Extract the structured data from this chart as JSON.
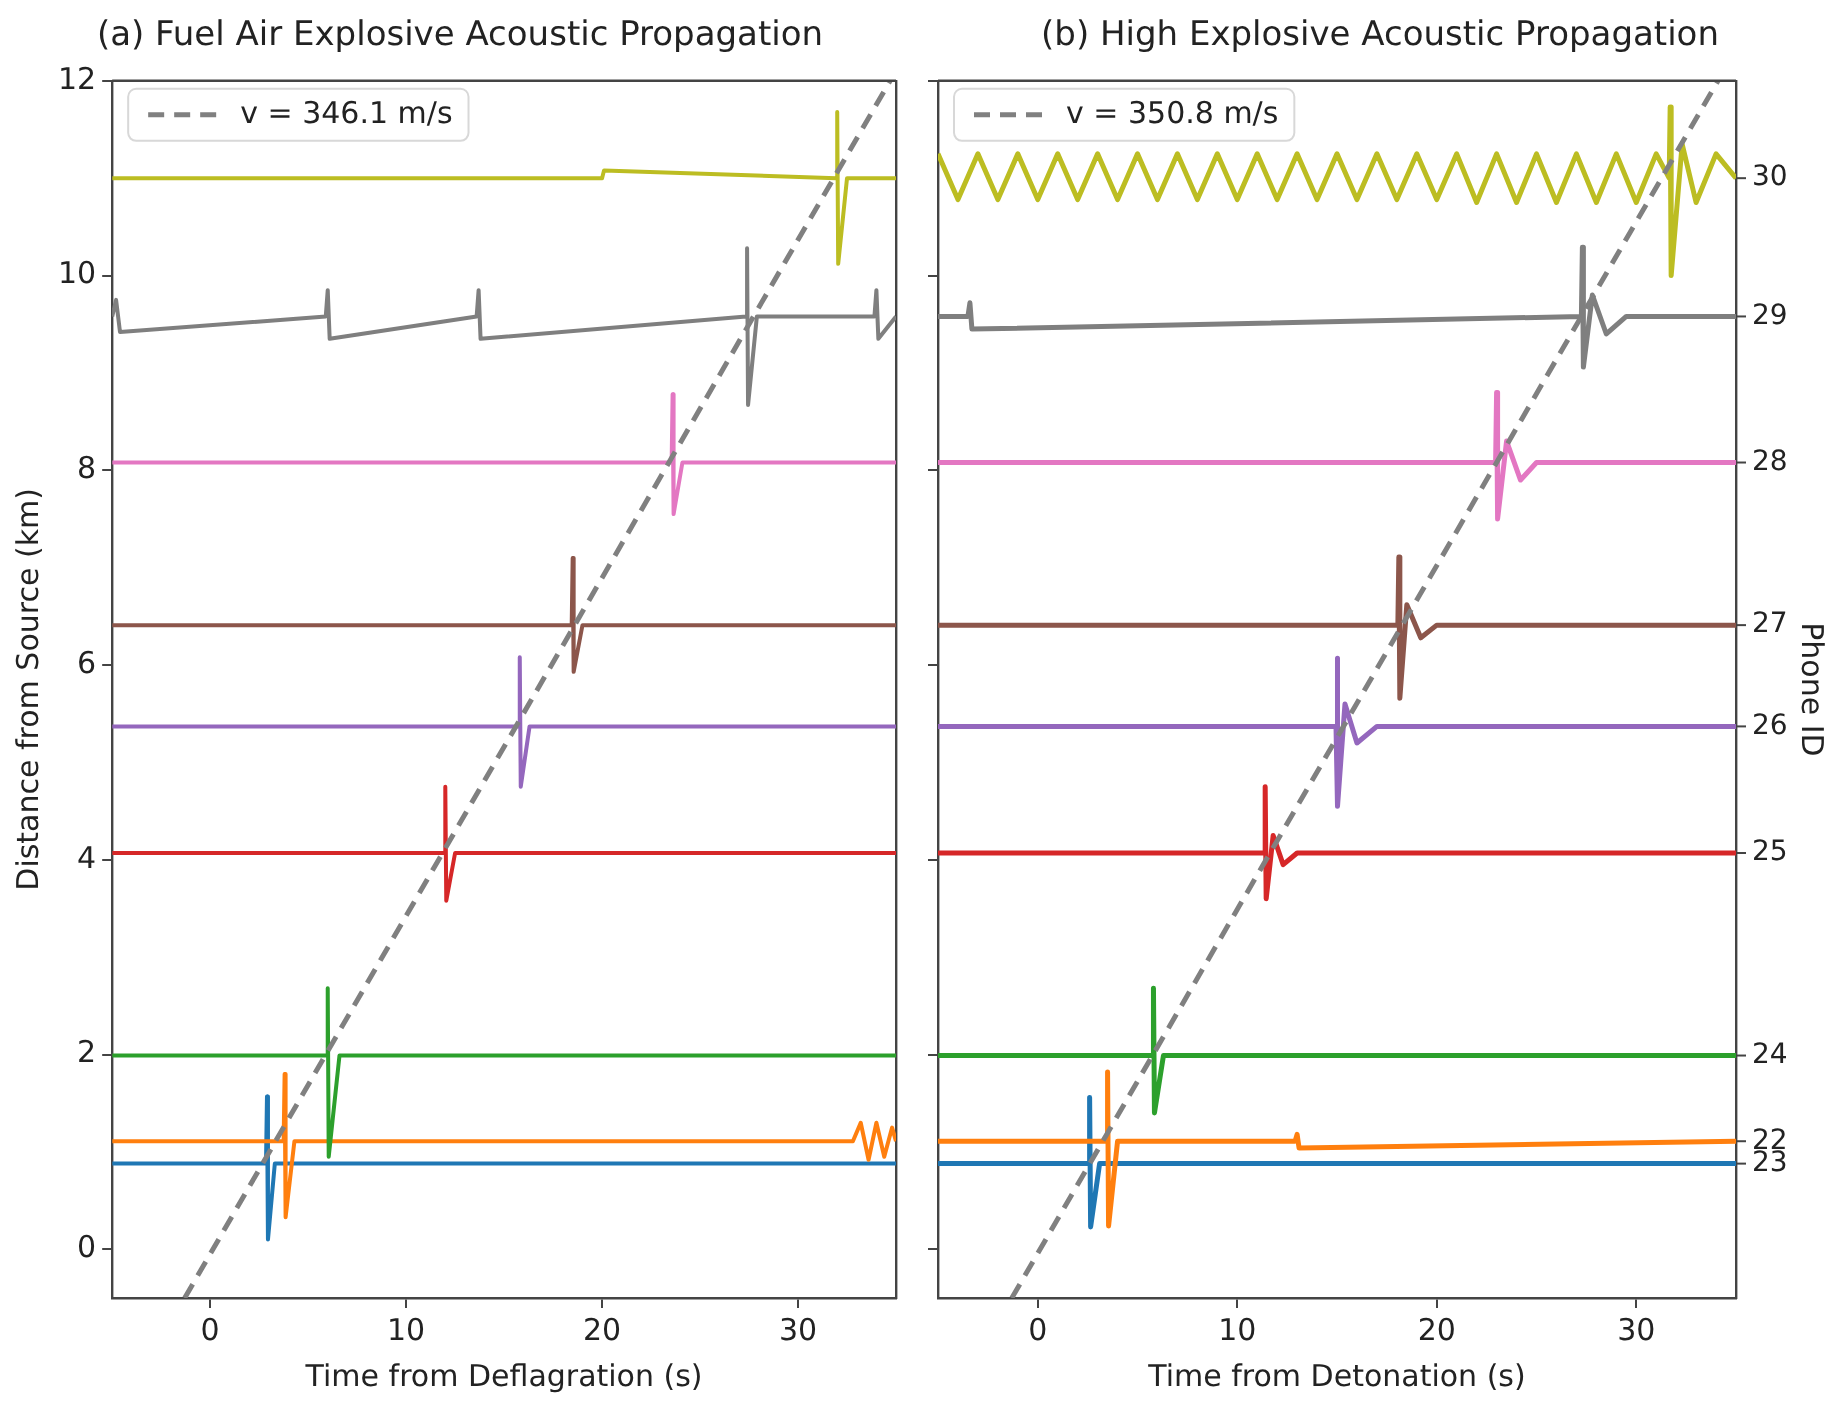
{
  "chart_data": [
    {
      "type": "line",
      "title": "(a) Fuel Air Explosive Acoustic Propagation",
      "xlabel": "Time from Deflagration (s)",
      "ylabel": "Distance from Source (km)",
      "xlim": [
        -5,
        35
      ],
      "xticks": [
        0,
        10,
        20,
        30
      ],
      "ylim": [
        -0.5,
        12
      ],
      "yticks": [
        0,
        2,
        4,
        6,
        8,
        10,
        12
      ],
      "grid": false,
      "legend": "top left",
      "series": [
        {
          "color": "#1f77b4",
          "x": [
            -5,
            2.85,
            2.9,
            2.95,
            3.3,
            35
          ],
          "values": [
            0.88,
            0.88,
            1.57,
            0.1,
            0.88,
            0.88
          ]
        },
        {
          "color": "#ff7f0e",
          "x": [
            -5,
            3.75,
            3.8,
            3.85,
            4.3,
            32.8,
            33.2,
            33.6,
            34,
            34.4,
            34.8,
            35
          ],
          "values": [
            1.11,
            1.11,
            1.8,
            0.33,
            1.11,
            1.11,
            1.3,
            0.92,
            1.3,
            0.95,
            1.25,
            1.11
          ]
        },
        {
          "color": "#2ca02c",
          "x": [
            -5,
            5.95,
            6,
            6.05,
            6.6,
            35
          ],
          "values": [
            1.99,
            1.99,
            2.68,
            0.95,
            1.99,
            1.99
          ]
        },
        {
          "color": "#d62728",
          "x": [
            -5,
            11.95,
            12,
            12.05,
            12.5,
            35
          ],
          "values": [
            4.07,
            4.07,
            4.75,
            3.58,
            4.07,
            4.07
          ]
        },
        {
          "color": "#9467bd",
          "x": [
            -5,
            15.75,
            15.8,
            15.85,
            16.3,
            35
          ],
          "values": [
            5.37,
            5.37,
            6.08,
            4.75,
            5.37,
            5.37
          ]
        },
        {
          "color": "#8c564b",
          "x": [
            -5,
            18.45,
            18.5,
            18.55,
            19,
            35
          ],
          "values": [
            6.41,
            6.41,
            7.1,
            5.93,
            6.41,
            6.41
          ]
        },
        {
          "color": "#e377c2",
          "x": [
            -5,
            23.55,
            23.6,
            23.65,
            24.1,
            35
          ],
          "values": [
            8.08,
            8.08,
            8.78,
            7.55,
            8.08,
            8.08
          ]
        },
        {
          "color": "#7f7f7f",
          "x": [
            -5,
            -4.8,
            -4.6,
            5.9,
            6,
            6.1,
            13.6,
            13.7,
            13.8,
            27.35,
            27.4,
            27.45,
            27.9,
            33.9,
            34,
            34.1,
            35
          ],
          "values": [
            9.58,
            9.75,
            9.42,
            9.58,
            9.85,
            9.35,
            9.58,
            9.85,
            9.35,
            9.58,
            10.28,
            8.67,
            9.58,
            9.58,
            9.85,
            9.35,
            9.58
          ]
        },
        {
          "color": "#bcbd22",
          "x": [
            -5,
            20,
            20.1,
            31.95,
            32,
            32.05,
            32.5,
            35
          ],
          "values": [
            11.0,
            11.0,
            11.08,
            11.0,
            11.68,
            10.12,
            11.0,
            11.0
          ]
        },
        {
          "type": "line",
          "name": "v = 346.1 m/s",
          "color": "#808080",
          "line_style": "dashed",
          "x": [
            -1.3,
            34.7
          ],
          "values": [
            -0.5,
            12
          ]
        }
      ]
    },
    {
      "type": "line",
      "title": "(b) High Explosive Acoustic Propagation",
      "xlabel": "Time from Detonation (s)",
      "y2label": "Phone ID",
      "xlim": [
        -5,
        35
      ],
      "xticks": [
        0,
        10,
        20,
        30
      ],
      "ylim": [
        -0.5,
        12
      ],
      "yticks": [
        0,
        2,
        4,
        6,
        8,
        10,
        12
      ],
      "tick_labels": "x",
      "grid": false,
      "legend": "top left",
      "series": [
        {
          "name": "23",
          "color": "#1f77b4",
          "x": [
            -5,
            2.55,
            2.6,
            2.65,
            3.1,
            35
          ],
          "values": [
            0.88,
            0.88,
            1.56,
            0.23,
            0.88,
            0.88
          ]
        },
        {
          "name": "22",
          "color": "#ff7f0e",
          "x": [
            -5,
            3.45,
            3.5,
            3.55,
            4,
            12.9,
            13,
            13.1,
            35
          ],
          "values": [
            1.11,
            1.11,
            1.82,
            0.24,
            1.11,
            1.11,
            1.18,
            1.04,
            1.11
          ]
        },
        {
          "name": "24",
          "color": "#2ca02c",
          "x": [
            -5,
            5.75,
            5.8,
            5.85,
            6.3,
            35
          ],
          "values": [
            1.99,
            1.99,
            2.68,
            1.4,
            1.99,
            1.99
          ]
        },
        {
          "name": "25",
          "color": "#d62728",
          "x": [
            -5,
            11.35,
            11.4,
            11.45,
            11.8,
            12.3,
            13,
            35
          ],
          "values": [
            4.07,
            4.07,
            4.75,
            3.6,
            4.25,
            3.95,
            4.07,
            4.07
          ]
        },
        {
          "name": "26",
          "color": "#9467bd",
          "x": [
            -5,
            14.95,
            15,
            15.05,
            15.4,
            16,
            17,
            35
          ],
          "values": [
            5.37,
            5.37,
            6.07,
            4.55,
            5.6,
            5.2,
            5.37,
            5.37
          ]
        },
        {
          "name": "27",
          "color": "#8c564b",
          "x": [
            -5,
            18.05,
            18.1,
            18.15,
            18.5,
            19.2,
            20,
            35
          ],
          "values": [
            6.41,
            6.41,
            7.11,
            5.66,
            6.62,
            6.28,
            6.41,
            6.41
          ]
        },
        {
          "name": "28",
          "color": "#e377c2",
          "x": [
            -5,
            22.95,
            23,
            23.05,
            23.5,
            24.2,
            25,
            35
          ],
          "values": [
            8.08,
            8.08,
            8.8,
            7.5,
            8.3,
            7.9,
            8.08,
            8.08
          ]
        },
        {
          "name": "29",
          "color": "#7f7f7f",
          "x": [
            -5,
            -3.5,
            -3.4,
            -3.3,
            27.25,
            27.3,
            27.35,
            27.8,
            28.5,
            29.5,
            35
          ],
          "values": [
            9.58,
            9.58,
            9.72,
            9.45,
            9.58,
            10.29,
            9.06,
            9.8,
            9.4,
            9.58,
            9.58
          ]
        },
        {
          "name": "30",
          "color": "#bcbd22",
          "x": [
            -5,
            -4,
            -3,
            -2,
            -1,
            0,
            1,
            2,
            3,
            4,
            5,
            6,
            7,
            8,
            9,
            10,
            11,
            12,
            13,
            14,
            15,
            16,
            17,
            18,
            19,
            20,
            21,
            22,
            23,
            24,
            25,
            26,
            27,
            28,
            29,
            30,
            31,
            31.65,
            31.7,
            31.75,
            32.3,
            33,
            34,
            35
          ],
          "values": [
            11.25,
            10.78,
            11.25,
            10.78,
            11.25,
            10.78,
            11.25,
            10.78,
            11.25,
            10.78,
            11.25,
            10.78,
            11.25,
            10.78,
            11.25,
            10.78,
            11.25,
            10.78,
            11.25,
            10.78,
            11.25,
            10.78,
            11.25,
            10.78,
            11.25,
            10.78,
            11.25,
            10.75,
            11.25,
            10.75,
            11.25,
            10.75,
            11.25,
            10.75,
            11.25,
            10.75,
            11.25,
            11.0,
            11.73,
            10.0,
            11.35,
            10.75,
            11.25,
            11.0
          ]
        },
        {
          "type": "line",
          "name": "v = 350.8 m/s",
          "color": "#808080",
          "line_style": "dashed",
          "x": [
            -1.3,
            34.1
          ],
          "values": [
            -0.5,
            12
          ]
        }
      ]
    }
  ]
}
